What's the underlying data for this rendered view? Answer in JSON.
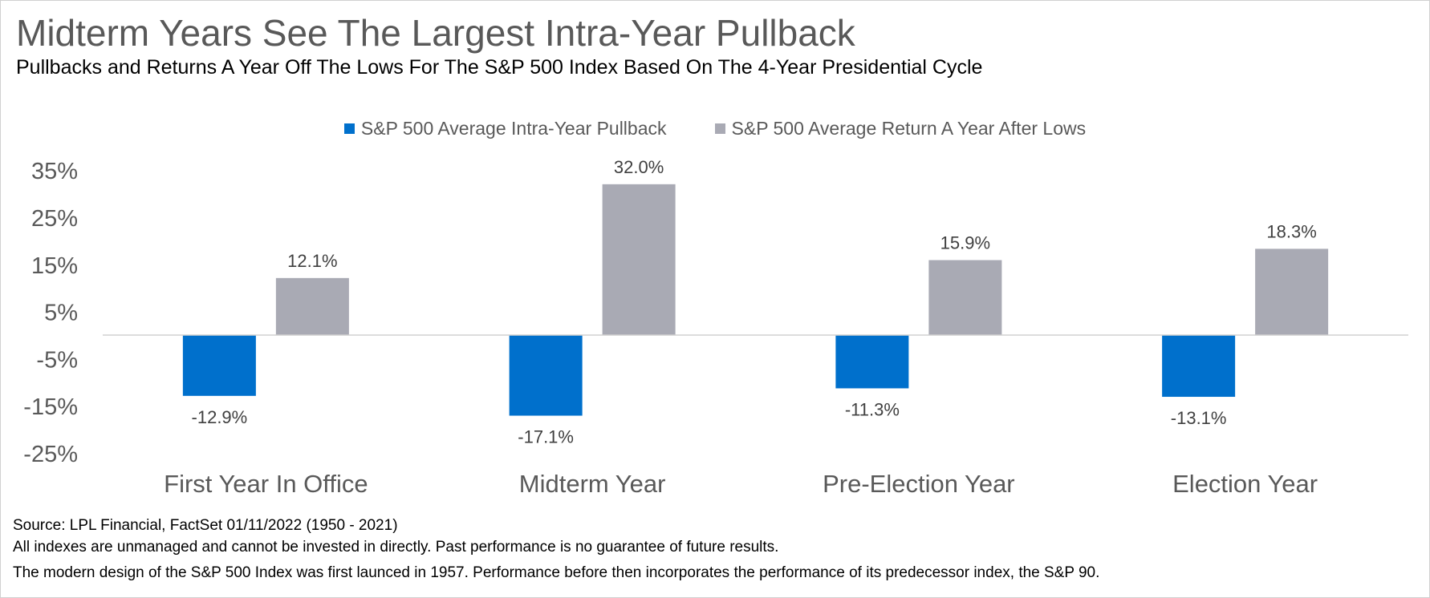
{
  "header": {
    "title": "Midterm Years See The Largest Intra-Year Pullback",
    "subtitle": "Pullbacks and Returns A Year Off The Lows For The S&P 500 Index Based On The 4-Year Presidential Cycle"
  },
  "footer": {
    "source": "Source: LPL Financial, FactSet 01/11/2022 (1950 - 2021)",
    "disclaimer": " All indexes are unmanaged and cannot be invested in directly. Past performance is no guarantee of future results.",
    "note": "The modern design of the S&P 500 Index was first launced in 1957. Performance before then incorporates the performance of its predecessor index, the S&P 90."
  },
  "colors": {
    "pullback": "#0070cc",
    "return": "#a9aab4",
    "axis_text": "#595959",
    "zero_line": "#d0d0d0"
  },
  "chart_data": {
    "type": "bar",
    "categories": [
      "First Year In Office",
      "Midterm Year",
      "Pre-Election Year",
      "Election Year"
    ],
    "series": [
      {
        "name": "S&P 500 Average Intra-Year Pullback",
        "values": [
          -12.9,
          -17.1,
          -11.3,
          -13.1
        ],
        "labels": [
          "-12.9%",
          "-17.1%",
          "-11.3%",
          "-13.1%"
        ]
      },
      {
        "name": "S&P 500 Average Return A Year After Lows",
        "values": [
          12.1,
          32.0,
          15.9,
          18.3
        ],
        "labels": [
          "12.1%",
          "32.0%",
          "15.9%",
          "18.3%"
        ]
      }
    ],
    "yticks": [
      35,
      25,
      15,
      5,
      -5,
      -15,
      -25
    ],
    "ytick_labels": [
      "35%",
      "25%",
      "15%",
      "5%",
      "-5%",
      "-15%",
      "-25%"
    ],
    "ylim": [
      -25,
      35
    ],
    "grid": false,
    "legend": "top-center"
  }
}
